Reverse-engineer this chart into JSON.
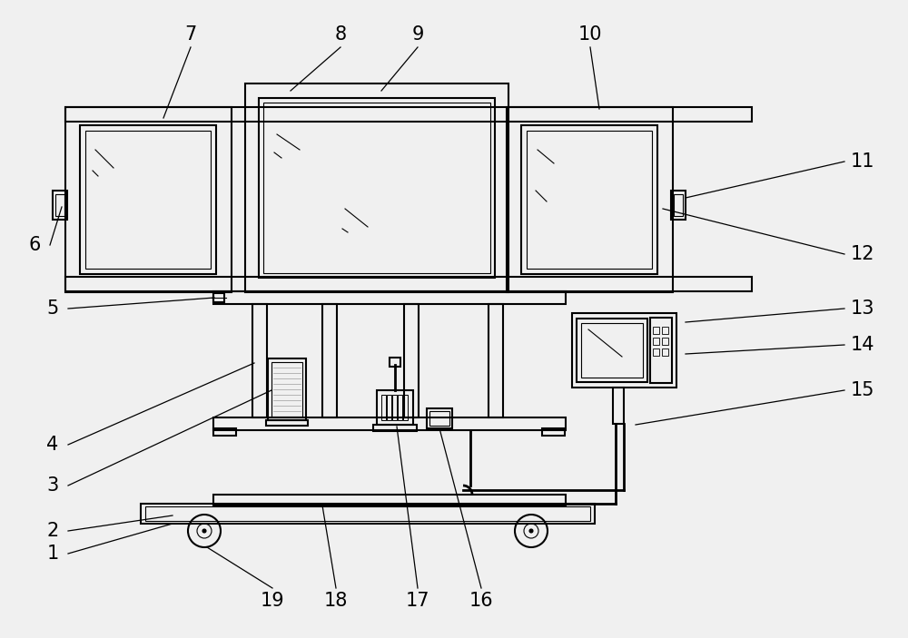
{
  "bg_color": "#f0f0f0",
  "line_color": "#000000",
  "lw": 1.5,
  "lw_thin": 0.8,
  "font_size": 15
}
